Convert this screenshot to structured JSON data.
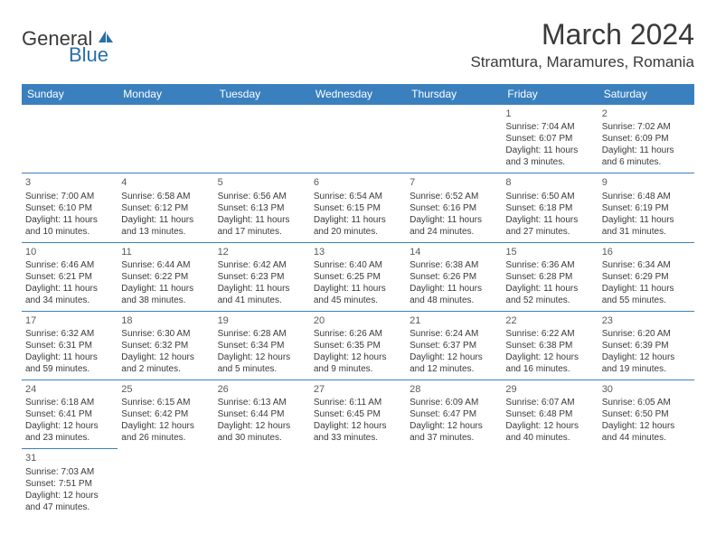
{
  "logo": {
    "text1": "General",
    "text2": "Blue"
  },
  "title": "March 2024",
  "location": "Stramtura, Maramures, Romania",
  "daynames": [
    "Sunday",
    "Monday",
    "Tuesday",
    "Wednesday",
    "Thursday",
    "Friday",
    "Saturday"
  ],
  "colors": {
    "headerBg": "#3a80bf",
    "headerText": "#ffffff",
    "cellBorder": "#3a80bf",
    "text": "#3a3a3a"
  },
  "weeks": [
    [
      null,
      null,
      null,
      null,
      null,
      {
        "n": "1",
        "sr": "Sunrise: 7:04 AM",
        "ss": "Sunset: 6:07 PM",
        "d1": "Daylight: 11 hours",
        "d2": "and 3 minutes."
      },
      {
        "n": "2",
        "sr": "Sunrise: 7:02 AM",
        "ss": "Sunset: 6:09 PM",
        "d1": "Daylight: 11 hours",
        "d2": "and 6 minutes."
      }
    ],
    [
      {
        "n": "3",
        "sr": "Sunrise: 7:00 AM",
        "ss": "Sunset: 6:10 PM",
        "d1": "Daylight: 11 hours",
        "d2": "and 10 minutes."
      },
      {
        "n": "4",
        "sr": "Sunrise: 6:58 AM",
        "ss": "Sunset: 6:12 PM",
        "d1": "Daylight: 11 hours",
        "d2": "and 13 minutes."
      },
      {
        "n": "5",
        "sr": "Sunrise: 6:56 AM",
        "ss": "Sunset: 6:13 PM",
        "d1": "Daylight: 11 hours",
        "d2": "and 17 minutes."
      },
      {
        "n": "6",
        "sr": "Sunrise: 6:54 AM",
        "ss": "Sunset: 6:15 PM",
        "d1": "Daylight: 11 hours",
        "d2": "and 20 minutes."
      },
      {
        "n": "7",
        "sr": "Sunrise: 6:52 AM",
        "ss": "Sunset: 6:16 PM",
        "d1": "Daylight: 11 hours",
        "d2": "and 24 minutes."
      },
      {
        "n": "8",
        "sr": "Sunrise: 6:50 AM",
        "ss": "Sunset: 6:18 PM",
        "d1": "Daylight: 11 hours",
        "d2": "and 27 minutes."
      },
      {
        "n": "9",
        "sr": "Sunrise: 6:48 AM",
        "ss": "Sunset: 6:19 PM",
        "d1": "Daylight: 11 hours",
        "d2": "and 31 minutes."
      }
    ],
    [
      {
        "n": "10",
        "sr": "Sunrise: 6:46 AM",
        "ss": "Sunset: 6:21 PM",
        "d1": "Daylight: 11 hours",
        "d2": "and 34 minutes."
      },
      {
        "n": "11",
        "sr": "Sunrise: 6:44 AM",
        "ss": "Sunset: 6:22 PM",
        "d1": "Daylight: 11 hours",
        "d2": "and 38 minutes."
      },
      {
        "n": "12",
        "sr": "Sunrise: 6:42 AM",
        "ss": "Sunset: 6:23 PM",
        "d1": "Daylight: 11 hours",
        "d2": "and 41 minutes."
      },
      {
        "n": "13",
        "sr": "Sunrise: 6:40 AM",
        "ss": "Sunset: 6:25 PM",
        "d1": "Daylight: 11 hours",
        "d2": "and 45 minutes."
      },
      {
        "n": "14",
        "sr": "Sunrise: 6:38 AM",
        "ss": "Sunset: 6:26 PM",
        "d1": "Daylight: 11 hours",
        "d2": "and 48 minutes."
      },
      {
        "n": "15",
        "sr": "Sunrise: 6:36 AM",
        "ss": "Sunset: 6:28 PM",
        "d1": "Daylight: 11 hours",
        "d2": "and 52 minutes."
      },
      {
        "n": "16",
        "sr": "Sunrise: 6:34 AM",
        "ss": "Sunset: 6:29 PM",
        "d1": "Daylight: 11 hours",
        "d2": "and 55 minutes."
      }
    ],
    [
      {
        "n": "17",
        "sr": "Sunrise: 6:32 AM",
        "ss": "Sunset: 6:31 PM",
        "d1": "Daylight: 11 hours",
        "d2": "and 59 minutes."
      },
      {
        "n": "18",
        "sr": "Sunrise: 6:30 AM",
        "ss": "Sunset: 6:32 PM",
        "d1": "Daylight: 12 hours",
        "d2": "and 2 minutes."
      },
      {
        "n": "19",
        "sr": "Sunrise: 6:28 AM",
        "ss": "Sunset: 6:34 PM",
        "d1": "Daylight: 12 hours",
        "d2": "and 5 minutes."
      },
      {
        "n": "20",
        "sr": "Sunrise: 6:26 AM",
        "ss": "Sunset: 6:35 PM",
        "d1": "Daylight: 12 hours",
        "d2": "and 9 minutes."
      },
      {
        "n": "21",
        "sr": "Sunrise: 6:24 AM",
        "ss": "Sunset: 6:37 PM",
        "d1": "Daylight: 12 hours",
        "d2": "and 12 minutes."
      },
      {
        "n": "22",
        "sr": "Sunrise: 6:22 AM",
        "ss": "Sunset: 6:38 PM",
        "d1": "Daylight: 12 hours",
        "d2": "and 16 minutes."
      },
      {
        "n": "23",
        "sr": "Sunrise: 6:20 AM",
        "ss": "Sunset: 6:39 PM",
        "d1": "Daylight: 12 hours",
        "d2": "and 19 minutes."
      }
    ],
    [
      {
        "n": "24",
        "sr": "Sunrise: 6:18 AM",
        "ss": "Sunset: 6:41 PM",
        "d1": "Daylight: 12 hours",
        "d2": "and 23 minutes."
      },
      {
        "n": "25",
        "sr": "Sunrise: 6:15 AM",
        "ss": "Sunset: 6:42 PM",
        "d1": "Daylight: 12 hours",
        "d2": "and 26 minutes."
      },
      {
        "n": "26",
        "sr": "Sunrise: 6:13 AM",
        "ss": "Sunset: 6:44 PM",
        "d1": "Daylight: 12 hours",
        "d2": "and 30 minutes."
      },
      {
        "n": "27",
        "sr": "Sunrise: 6:11 AM",
        "ss": "Sunset: 6:45 PM",
        "d1": "Daylight: 12 hours",
        "d2": "and 33 minutes."
      },
      {
        "n": "28",
        "sr": "Sunrise: 6:09 AM",
        "ss": "Sunset: 6:47 PM",
        "d1": "Daylight: 12 hours",
        "d2": "and 37 minutes."
      },
      {
        "n": "29",
        "sr": "Sunrise: 6:07 AM",
        "ss": "Sunset: 6:48 PM",
        "d1": "Daylight: 12 hours",
        "d2": "and 40 minutes."
      },
      {
        "n": "30",
        "sr": "Sunrise: 6:05 AM",
        "ss": "Sunset: 6:50 PM",
        "d1": "Daylight: 12 hours",
        "d2": "and 44 minutes."
      }
    ],
    [
      {
        "n": "31",
        "sr": "Sunrise: 7:03 AM",
        "ss": "Sunset: 7:51 PM",
        "d1": "Daylight: 12 hours",
        "d2": "and 47 minutes."
      },
      null,
      null,
      null,
      null,
      null,
      null
    ]
  ]
}
